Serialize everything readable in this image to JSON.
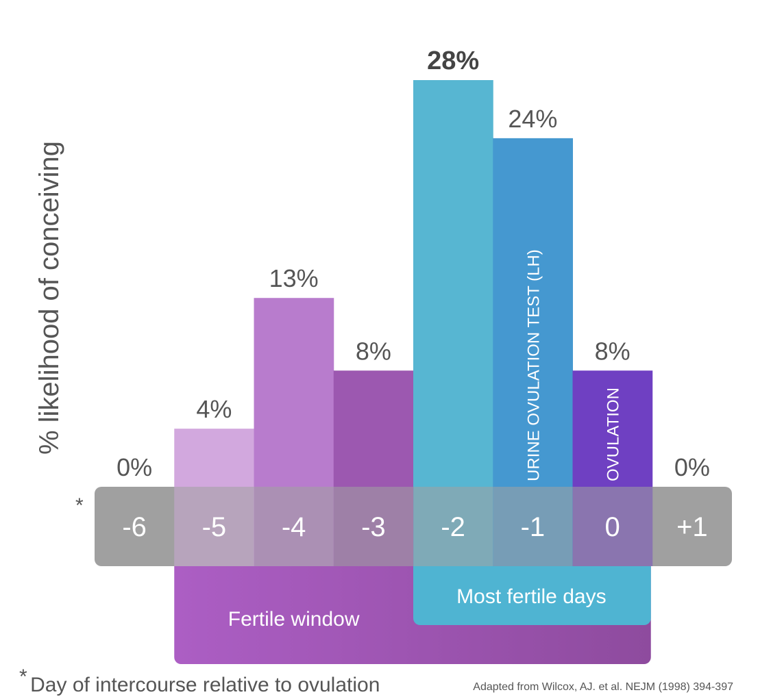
{
  "chart_data": {
    "type": "bar",
    "ylabel": "% likelihood of conceiving",
    "categories": [
      "-6",
      "-5",
      "-4",
      "-3",
      "-2",
      "-1",
      "0",
      "+1"
    ],
    "values": [
      0,
      4,
      13,
      8,
      28,
      24,
      8,
      0
    ],
    "value_labels": [
      "0%",
      "4%",
      "13%",
      "8%",
      "28%",
      "24%",
      "8%",
      "0%"
    ],
    "ylim": [
      0,
      28
    ],
    "grid": false,
    "axis_marker": "*",
    "bar_colors": [
      "#a0a0a0",
      "#d2a8de",
      "#b87ccd",
      "#9c58b0",
      "#57b6d2",
      "#4598d0",
      "#6f40c2",
      "#a0a0a0"
    ],
    "bar_annotations": [
      {
        "category": "-1",
        "text": "URINE OVULATION TEST (LH)"
      },
      {
        "category": "0",
        "text": "OVULATION"
      }
    ],
    "ranges": [
      {
        "label": "Fertile window",
        "from": "-5",
        "to": "0",
        "color": "#a458bc"
      },
      {
        "label": "Most fertile days",
        "from": "-2",
        "to": "0",
        "color": "#4fb4d2"
      }
    ],
    "footnote": "Day of intercourse relative to ovulation",
    "footnote_marker": "*",
    "source": "Adapted from Wilcox, AJ. et al. NEJM (1998) 394-397"
  }
}
